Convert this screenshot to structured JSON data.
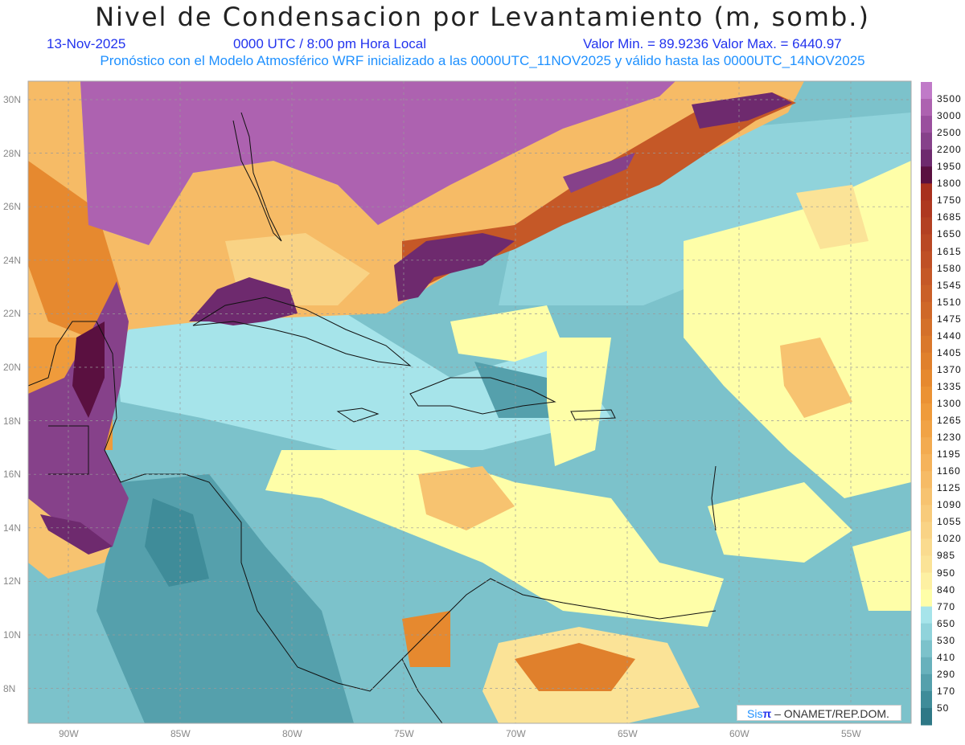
{
  "header": {
    "title": "Nivel de Condensacion por Levantamiento (m, somb.)",
    "date": "13-Nov-2025",
    "time": "0000 UTC / 8:00 pm Hora Local",
    "min_max": "Valor Min. = 89.9236  Valor Max. = 6440.97",
    "forecast_info": "Pronóstico con el Modelo Atmosférico WRF inicializado a las 0000UTC_11NOV2025 y válido hasta las  0000UTC_14NOV2025"
  },
  "axes": {
    "lon_ticks": [
      {
        "v": -90,
        "label": "90W"
      },
      {
        "v": -85,
        "label": "85W"
      },
      {
        "v": -80,
        "label": "80W"
      },
      {
        "v": -75,
        "label": "75W"
      },
      {
        "v": -70,
        "label": "70W"
      },
      {
        "v": -65,
        "label": "65W"
      },
      {
        "v": -60,
        "label": "60W"
      },
      {
        "v": -55,
        "label": "55W"
      }
    ],
    "lat_ticks": [
      {
        "v": 30,
        "label": "30N"
      },
      {
        "v": 28,
        "label": "28N"
      },
      {
        "v": 26,
        "label": "26N"
      },
      {
        "v": 24,
        "label": "24N"
      },
      {
        "v": 22,
        "label": "22N"
      },
      {
        "v": 20,
        "label": "20N"
      },
      {
        "v": 18,
        "label": "18N"
      },
      {
        "v": 16,
        "label": "16N"
      },
      {
        "v": 14,
        "label": "14N"
      },
      {
        "v": 12,
        "label": "12N"
      },
      {
        "v": 10,
        "label": "10N"
      },
      {
        "v": 8,
        "label": "8N"
      }
    ]
  },
  "colorbar": {
    "labels": [
      "3500",
      "3000",
      "2500",
      "2200",
      "1950",
      "1800",
      "1750",
      "1685",
      "1650",
      "1615",
      "1580",
      "1545",
      "1510",
      "1475",
      "1440",
      "1405",
      "1370",
      "1335",
      "1300",
      "1265",
      "1230",
      "1195",
      "1160",
      "1125",
      "1090",
      "1055",
      "1020",
      "985",
      "950",
      "840",
      "770",
      "650",
      "530",
      "410",
      "290",
      "170",
      "50"
    ],
    "colors": [
      "#c07ac8",
      "#ad62b0",
      "#9a4f9e",
      "#86418a",
      "#6e2a6e",
      "#5a1040",
      "#a8301e",
      "#ae3820",
      "#b34022",
      "#b94824",
      "#bf5026",
      "#c55827",
      "#ca6028",
      "#cf6829",
      "#d4702a",
      "#da782b",
      "#e0802c",
      "#e6892f",
      "#eb9234",
      "#ef9b3b",
      "#f1a345",
      "#f3ab50",
      "#f5b35b",
      "#f6bb66",
      "#f7c370",
      "#f8cb7b",
      "#f9d385",
      "#fadb8f",
      "#fbe397",
      "#fdf0a2",
      "#fefea8",
      "#a6e4ea",
      "#90d3db",
      "#7cc2cb",
      "#68b1bc",
      "#55a0ac",
      "#3f8c99",
      "#2e7886"
    ]
  },
  "credit": {
    "brand_sis": "Sis",
    "brand_pi": "π",
    "text": "– ONAMET/REP.DOM."
  }
}
